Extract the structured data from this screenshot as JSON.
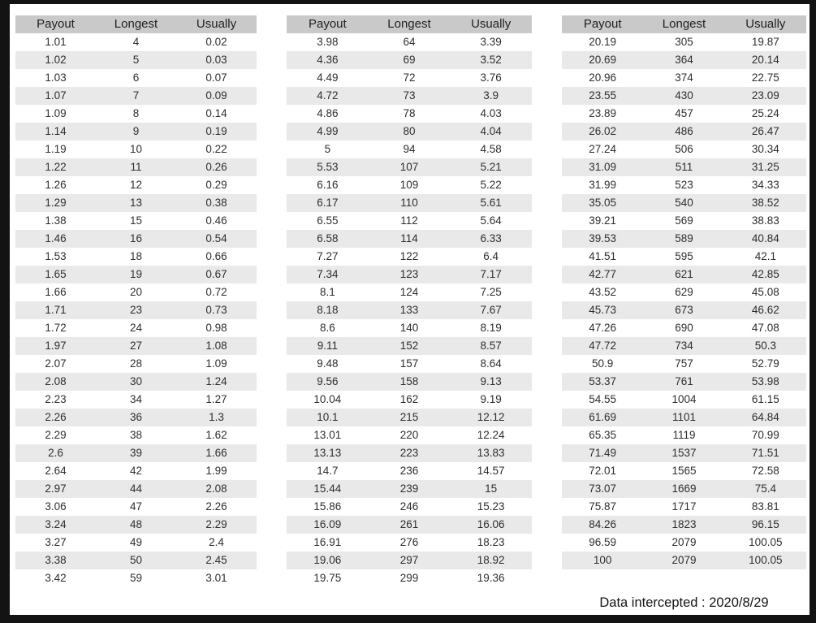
{
  "columns": [
    "Payout",
    "Longest",
    "Usually"
  ],
  "tables": [
    {
      "rows": [
        [
          "1.01",
          "4",
          "0.02"
        ],
        [
          "1.02",
          "5",
          "0.03"
        ],
        [
          "1.03",
          "6",
          "0.07"
        ],
        [
          "1.07",
          "7",
          "0.09"
        ],
        [
          "1.09",
          "8",
          "0.14"
        ],
        [
          "1.14",
          "9",
          "0.19"
        ],
        [
          "1.19",
          "10",
          "0.22"
        ],
        [
          "1.22",
          "11",
          "0.26"
        ],
        [
          "1.26",
          "12",
          "0.29"
        ],
        [
          "1.29",
          "13",
          "0.38"
        ],
        [
          "1.38",
          "15",
          "0.46"
        ],
        [
          "1.46",
          "16",
          "0.54"
        ],
        [
          "1.53",
          "18",
          "0.66"
        ],
        [
          "1.65",
          "19",
          "0.67"
        ],
        [
          "1.66",
          "20",
          "0.72"
        ],
        [
          "1.71",
          "23",
          "0.73"
        ],
        [
          "1.72",
          "24",
          "0.98"
        ],
        [
          "1.97",
          "27",
          "1.08"
        ],
        [
          "2.07",
          "28",
          "1.09"
        ],
        [
          "2.08",
          "30",
          "1.24"
        ],
        [
          "2.23",
          "34",
          "1.27"
        ],
        [
          "2.26",
          "36",
          "1.3"
        ],
        [
          "2.29",
          "38",
          "1.62"
        ],
        [
          "2.6",
          "39",
          "1.66"
        ],
        [
          "2.64",
          "42",
          "1.99"
        ],
        [
          "2.97",
          "44",
          "2.08"
        ],
        [
          "3.06",
          "47",
          "2.26"
        ],
        [
          "3.24",
          "48",
          "2.29"
        ],
        [
          "3.27",
          "49",
          "2.4"
        ],
        [
          "3.38",
          "50",
          "2.45"
        ],
        [
          "3.42",
          "59",
          "3.01"
        ]
      ]
    },
    {
      "rows": [
        [
          "3.98",
          "64",
          "3.39"
        ],
        [
          "4.36",
          "69",
          "3.52"
        ],
        [
          "4.49",
          "72",
          "3.76"
        ],
        [
          "4.72",
          "73",
          "3.9"
        ],
        [
          "4.86",
          "78",
          "4.03"
        ],
        [
          "4.99",
          "80",
          "4.04"
        ],
        [
          "5",
          "94",
          "4.58"
        ],
        [
          "5.53",
          "107",
          "5.21"
        ],
        [
          "6.16",
          "109",
          "5.22"
        ],
        [
          "6.17",
          "110",
          "5.61"
        ],
        [
          "6.55",
          "112",
          "5.64"
        ],
        [
          "6.58",
          "114",
          "6.33"
        ],
        [
          "7.27",
          "122",
          "6.4"
        ],
        [
          "7.34",
          "123",
          "7.17"
        ],
        [
          "8.1",
          "124",
          "7.25"
        ],
        [
          "8.18",
          "133",
          "7.67"
        ],
        [
          "8.6",
          "140",
          "8.19"
        ],
        [
          "9.11",
          "152",
          "8.57"
        ],
        [
          "9.48",
          "157",
          "8.64"
        ],
        [
          "9.56",
          "158",
          "9.13"
        ],
        [
          "10.04",
          "162",
          "9.19"
        ],
        [
          "10.1",
          "215",
          "12.12"
        ],
        [
          "13.01",
          "220",
          "12.24"
        ],
        [
          "13.13",
          "223",
          "13.83"
        ],
        [
          "14.7",
          "236",
          "14.57"
        ],
        [
          "15.44",
          "239",
          "15"
        ],
        [
          "15.86",
          "246",
          "15.23"
        ],
        [
          "16.09",
          "261",
          "16.06"
        ],
        [
          "16.91",
          "276",
          "18.23"
        ],
        [
          "19.06",
          "297",
          "18.92"
        ],
        [
          "19.75",
          "299",
          "19.36"
        ]
      ]
    },
    {
      "rows": [
        [
          "20.19",
          "305",
          "19.87"
        ],
        [
          "20.69",
          "364",
          "20.14"
        ],
        [
          "20.96",
          "374",
          "22.75"
        ],
        [
          "23.55",
          "430",
          "23.09"
        ],
        [
          "23.89",
          "457",
          "25.24"
        ],
        [
          "26.02",
          "486",
          "26.47"
        ],
        [
          "27.24",
          "506",
          "30.34"
        ],
        [
          "31.09",
          "511",
          "31.25"
        ],
        [
          "31.99",
          "523",
          "34.33"
        ],
        [
          "35.05",
          "540",
          "38.52"
        ],
        [
          "39.21",
          "569",
          "38.83"
        ],
        [
          "39.53",
          "589",
          "40.84"
        ],
        [
          "41.51",
          "595",
          "42.1"
        ],
        [
          "42.77",
          "621",
          "42.85"
        ],
        [
          "43.52",
          "629",
          "45.08"
        ],
        [
          "45.73",
          "673",
          "46.62"
        ],
        [
          "47.26",
          "690",
          "47.08"
        ],
        [
          "47.72",
          "734",
          "50.3"
        ],
        [
          "50.9",
          "757",
          "52.79"
        ],
        [
          "53.37",
          "761",
          "53.98"
        ],
        [
          "54.55",
          "1004",
          "61.15"
        ],
        [
          "61.69",
          "1101",
          "64.84"
        ],
        [
          "65.35",
          "1119",
          "70.99"
        ],
        [
          "71.49",
          "1537",
          "71.51"
        ],
        [
          "72.01",
          "1565",
          "72.58"
        ],
        [
          "73.07",
          "1669",
          "75.4"
        ],
        [
          "75.87",
          "1717",
          "83.81"
        ],
        [
          "84.26",
          "1823",
          "96.15"
        ],
        [
          "96.59",
          "2079",
          "100.05"
        ],
        [
          "100",
          "2079",
          "100.05"
        ]
      ]
    }
  ],
  "footer": {
    "text": "Data intercepted : 2020/8/29"
  },
  "colors": {
    "frame": "#131313",
    "page_background": "#ffffff",
    "header_background": "#c9c9c9",
    "stripe_background": "#e9e9e9",
    "text": "#2e2e2e"
  }
}
